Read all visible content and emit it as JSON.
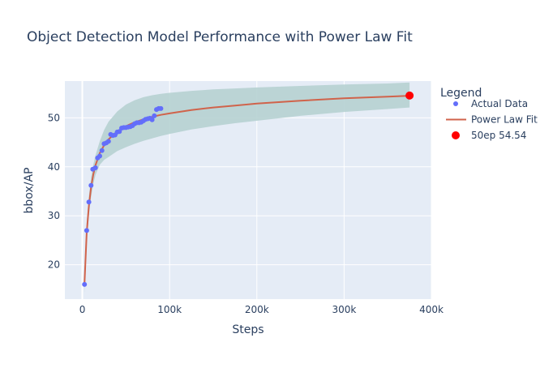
{
  "chart_data": {
    "type": "scatter",
    "title": "Object Detection Model Performance with Power Law Fit",
    "xlabel": "Steps",
    "ylabel": "bbox/AP",
    "xlim": [
      -20000,
      400000
    ],
    "ylim": [
      13,
      57.5
    ],
    "x_ticks": [
      0,
      100000,
      200000,
      300000,
      400000
    ],
    "x_tick_labels": [
      "0",
      "100k",
      "200k",
      "300k",
      "400k"
    ],
    "y_ticks": [
      20,
      30,
      40,
      50
    ],
    "y_tick_labels": [
      "20",
      "30",
      "40",
      "50"
    ],
    "grid": true,
    "legend_title": "Legend",
    "legend_placement": "right",
    "series": [
      {
        "name": "Actual Data",
        "type": "scatter",
        "color": "#636efa",
        "points": [
          [
            2500,
            16.0
          ],
          [
            5000,
            27.0
          ],
          [
            7500,
            32.8
          ],
          [
            10000,
            36.2
          ],
          [
            12000,
            39.5
          ],
          [
            15000,
            39.8
          ],
          [
            17500,
            41.8
          ],
          [
            20000,
            42.2
          ],
          [
            22500,
            43.3
          ],
          [
            25000,
            44.7
          ],
          [
            27500,
            44.9
          ],
          [
            30000,
            45.2
          ],
          [
            32500,
            46.6
          ],
          [
            35000,
            46.4
          ],
          [
            37500,
            46.5
          ],
          [
            40000,
            47.1
          ],
          [
            42500,
            47.2
          ],
          [
            45000,
            47.9
          ],
          [
            47500,
            48.0
          ],
          [
            50000,
            48.0
          ],
          [
            52500,
            48.1
          ],
          [
            55000,
            48.2
          ],
          [
            57500,
            48.4
          ],
          [
            60000,
            48.8
          ],
          [
            62500,
            49.0
          ],
          [
            65000,
            49.0
          ],
          [
            67500,
            49.1
          ],
          [
            70000,
            49.4
          ],
          [
            72500,
            49.7
          ],
          [
            75000,
            49.8
          ],
          [
            77500,
            49.9
          ],
          [
            80000,
            49.6
          ],
          [
            82500,
            50.4
          ],
          [
            85000,
            51.7
          ],
          [
            87500,
            51.9
          ],
          [
            90000,
            51.9
          ]
        ]
      },
      {
        "name": "Power Law Fit",
        "type": "line",
        "color": "#d0634b",
        "band_color": "#b6d1d2",
        "x": [
          2500,
          5000,
          7500,
          10000,
          12500,
          15000,
          20000,
          25000,
          30000,
          40000,
          50000,
          60000,
          70000,
          80000,
          90000,
          100000,
          125000,
          150000,
          175000,
          200000,
          250000,
          300000,
          350000,
          375000
        ],
        "y": [
          16.2,
          26.5,
          32.0,
          35.8,
          38.4,
          40.3,
          42.8,
          44.4,
          45.6,
          47.2,
          48.3,
          49.1,
          49.7,
          50.2,
          50.6,
          50.9,
          51.6,
          52.1,
          52.5,
          52.9,
          53.5,
          54.0,
          54.3,
          54.5
        ],
        "band_upper": [
          18.2,
          28.5,
          34.0,
          37.8,
          40.4,
          42.3,
          45.2,
          47.5,
          49.2,
          51.3,
          52.7,
          53.6,
          54.2,
          54.6,
          54.9,
          55.1,
          55.5,
          55.8,
          56.0,
          56.2,
          56.5,
          56.8,
          57.0,
          57.2
        ],
        "band_lower": [
          14.2,
          24.5,
          30.0,
          33.8,
          36.4,
          38.3,
          40.4,
          41.4,
          42.0,
          43.2,
          44.0,
          44.7,
          45.3,
          45.8,
          46.3,
          46.7,
          47.6,
          48.3,
          48.9,
          49.4,
          50.4,
          51.2,
          51.8,
          52.1
        ]
      },
      {
        "name": "50ep 54.54",
        "type": "scatter",
        "color": "#ff0000",
        "points": [
          [
            375000,
            54.54
          ]
        ]
      }
    ]
  }
}
